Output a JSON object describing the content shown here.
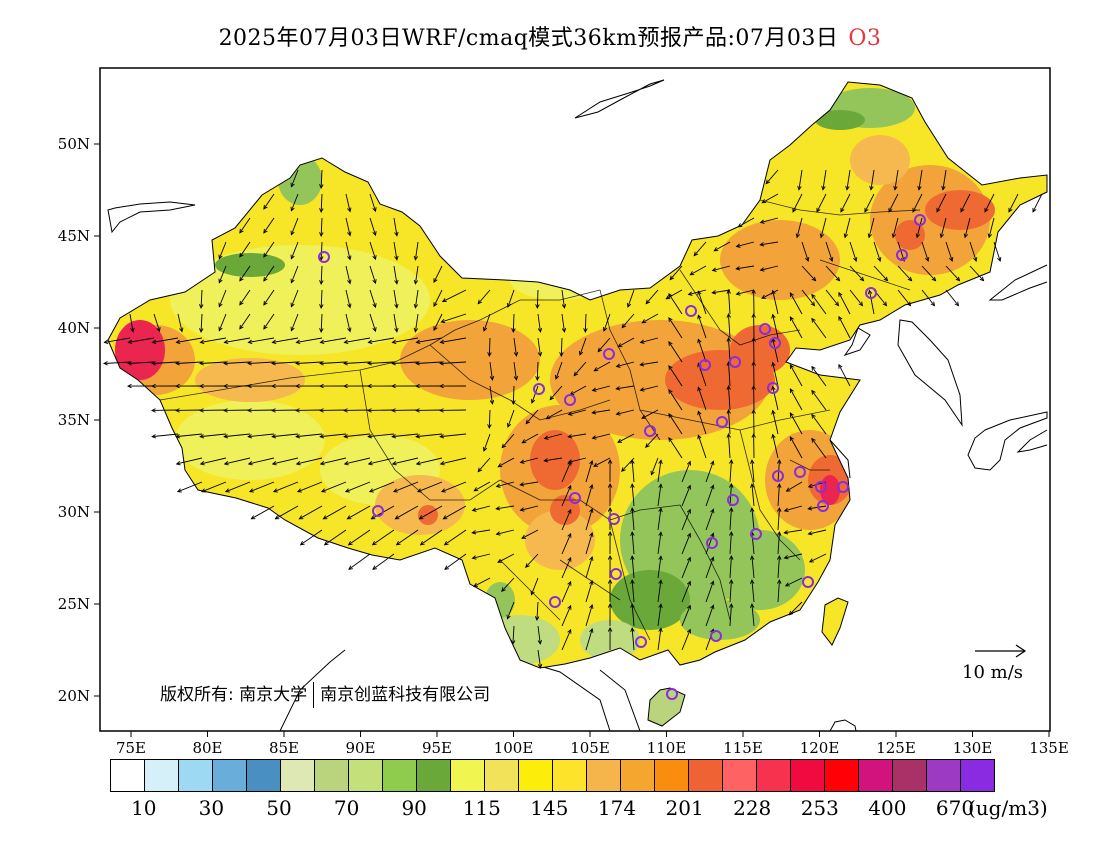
{
  "title": {
    "main": "2025年07月03日WRF/cmaq模式36km预报产品:07月03日",
    "species": "O3"
  },
  "map": {
    "lon_ticks": [
      "75E",
      "80E",
      "85E",
      "90E",
      "95E",
      "100E",
      "105E",
      "110E",
      "115E",
      "120E",
      "125E",
      "130E",
      "135E"
    ],
    "lat_ticks": [
      "50N",
      "45N",
      "40N",
      "35N",
      "30N",
      "25N",
      "20N"
    ],
    "copyright_a": "版权所有: 南京大学",
    "copyright_b": "南京创蓝科技有限公司",
    "wind_ref_label": "10 m/s",
    "station_color": "#8a2be2",
    "fill_colors": {
      "yellow": "#f7e628",
      "light_yellow": "#f0f05a",
      "orange": "#f2a33a",
      "light_orange": "#f5b950",
      "dark_orange": "#ef6a32",
      "red": "#ea2550",
      "green": "#93c55a",
      "dark_green": "#6aa83a",
      "pale_green": "#c0dc80"
    }
  },
  "legend": {
    "unit": "(ug/m3)",
    "colors": [
      "#ffffff",
      "#d6f0fa",
      "#9ed9f3",
      "#69addb",
      "#4a8fc2",
      "#dde8b4",
      "#b9d47c",
      "#c3e07a",
      "#8fcb4c",
      "#6aa83a",
      "#f0f54f",
      "#f2e25a",
      "#fcee0a",
      "#fde32a",
      "#f6b54a",
      "#f5a62e",
      "#fa8d0e",
      "#ee6233",
      "#fe6262",
      "#f7324f",
      "#f00a40",
      "#fe0006",
      "#d2137e",
      "#aa3167",
      "#9c3ac4",
      "#8a2be2"
    ],
    "labels": [
      {
        "text": "10",
        "after": 1
      },
      {
        "text": "30",
        "after": 3
      },
      {
        "text": "50",
        "after": 5
      },
      {
        "text": "70",
        "after": 7
      },
      {
        "text": "90",
        "after": 9
      },
      {
        "text": "115",
        "after": 11
      },
      {
        "text": "145",
        "after": 13
      },
      {
        "text": "174",
        "after": 15
      },
      {
        "text": "201",
        "after": 17
      },
      {
        "text": "228",
        "after": 19
      },
      {
        "text": "253",
        "after": 21
      },
      {
        "text": "400",
        "after": 23
      },
      {
        "text": "670",
        "after": 25
      }
    ]
  }
}
